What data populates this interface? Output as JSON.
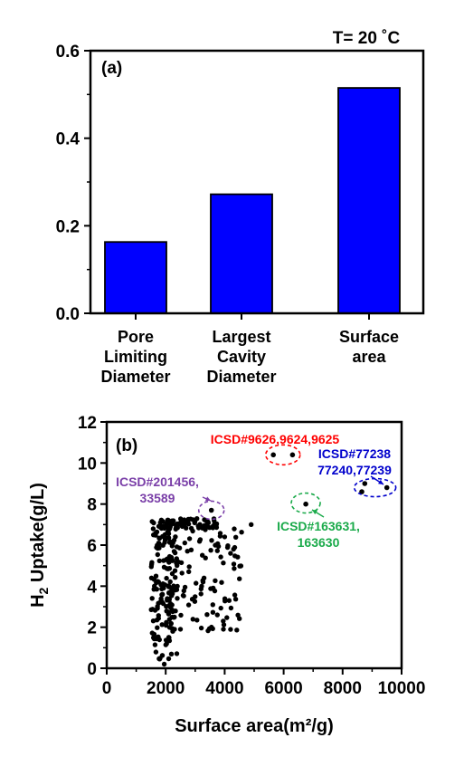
{
  "chart_data": [
    {
      "type": "bar",
      "panel_label": "(a)",
      "title": "T= 20 ˚C",
      "categories": [
        [
          "Pore",
          "Limiting",
          "Diameter"
        ],
        [
          "Largest",
          "Cavity",
          "Diameter"
        ],
        [
          "Surface",
          "area"
        ]
      ],
      "values": [
        0.163,
        0.272,
        0.515
      ],
      "ylim": [
        0,
        0.6
      ],
      "yticks": [
        "0.0",
        "0.2",
        "0.4",
        "0.6"
      ],
      "xlabel": "",
      "ylabel": "",
      "bar_color": "#0000ff",
      "grid": false
    },
    {
      "type": "scatter",
      "panel_label": "(b)",
      "xlabel": "Surface area(m²/g)",
      "ylabel_main": "H",
      "ylabel_sub": "2",
      "ylabel_rest": " Uptake(g/L)",
      "xlim": [
        0,
        10000
      ],
      "ylim": [
        0,
        12
      ],
      "xticks": [
        "0",
        "2000",
        "4000",
        "6000",
        "8000",
        "10000"
      ],
      "yticks": [
        "0",
        "2",
        "4",
        "6",
        "8",
        "10",
        "12"
      ],
      "point_color": "#000000",
      "grid": false,
      "highlights": [
        {
          "points": [
            [
              5650,
              10.4
            ],
            [
              6300,
              10.4
            ]
          ],
          "color": "#ff0000"
        },
        {
          "points": [
            [
              8750,
              9.0
            ],
            [
              8650,
              8.6
            ],
            [
              9500,
              8.8
            ]
          ],
          "color": "#0000cc"
        },
        {
          "points": [
            [
              6750,
              8.0
            ]
          ],
          "color": "#1aaa4a"
        },
        {
          "points": [
            [
              3550,
              7.7
            ]
          ],
          "color": "#7a3fa8"
        }
      ],
      "annotations": [
        {
          "lines": [
            "ICSD#9626,9624,9625"
          ],
          "color": "#ff0000"
        },
        {
          "lines": [
            "ICSD#77238",
            "77240,77239"
          ],
          "color": "#0000cc"
        },
        {
          "lines": [
            "ICSD#163631,",
            "163630"
          ],
          "color": "#1aaa4a"
        },
        {
          "lines": [
            "ICSD#201456,",
            "33589"
          ],
          "color": "#7a3fa8"
        }
      ]
    }
  ]
}
